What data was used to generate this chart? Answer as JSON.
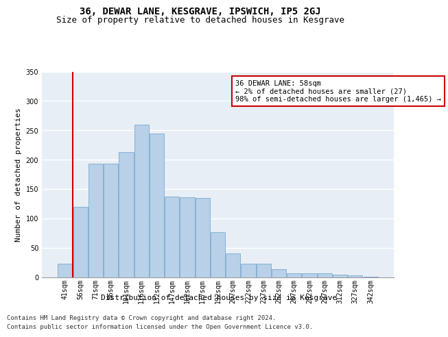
{
  "title": "36, DEWAR LANE, KESGRAVE, IPSWICH, IP5 2GJ",
  "subtitle": "Size of property relative to detached houses in Kesgrave",
  "xlabel": "Distribution of detached houses by size in Kesgrave",
  "ylabel": "Number of detached properties",
  "categories": [
    "41sqm",
    "56sqm",
    "71sqm",
    "86sqm",
    "101sqm",
    "116sqm",
    "132sqm",
    "147sqm",
    "162sqm",
    "177sqm",
    "192sqm",
    "207sqm",
    "222sqm",
    "237sqm",
    "252sqm",
    "267sqm",
    "282sqm",
    "297sqm",
    "312sqm",
    "327sqm",
    "342sqm"
  ],
  "values": [
    23,
    120,
    193,
    193,
    213,
    260,
    245,
    137,
    136,
    135,
    76,
    40,
    23,
    23,
    14,
    7,
    6,
    6,
    4,
    3,
    1
  ],
  "bar_color": "#b8d0e8",
  "bar_edge_color": "#7aaacf",
  "background_color": "#e8eef5",
  "annotation_box_text": "36 DEWAR LANE: 58sqm\n← 2% of detached houses are smaller (27)\n98% of semi-detached houses are larger (1,465) →",
  "annotation_box_color": "#ffffff",
  "annotation_box_edge_color": "#cc0000",
  "vline_color": "#cc0000",
  "ylim": [
    0,
    350
  ],
  "yticks": [
    0,
    50,
    100,
    150,
    200,
    250,
    300,
    350
  ],
  "footer_line1": "Contains HM Land Registry data © Crown copyright and database right 2024.",
  "footer_line2": "Contains public sector information licensed under the Open Government Licence v3.0.",
  "title_fontsize": 10,
  "subtitle_fontsize": 9,
  "axis_label_fontsize": 8,
  "tick_fontsize": 7,
  "footer_fontsize": 6.5,
  "ann_fontsize": 7.5
}
